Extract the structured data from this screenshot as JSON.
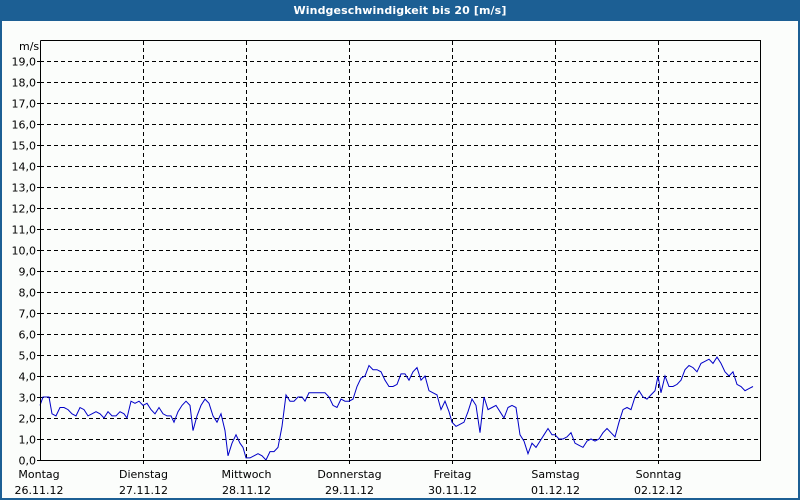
{
  "window": {
    "title": "Windgeschwindigkeit bis 20 [m/s]",
    "title_bar_color": "#1c5f94",
    "background_color": "#fbfdfb"
  },
  "chart_data": {
    "type": "line",
    "title": "Windgeschwindigkeit bis 20 [m/s]",
    "xlabel": "",
    "ylabel": "m/s",
    "ylim": [
      0,
      20
    ],
    "grid": true,
    "line_color": "#0000c8",
    "y_ticks": [
      "0,0",
      "1,0",
      "2,0",
      "3,0",
      "4,0",
      "5,0",
      "6,0",
      "7,0",
      "8,0",
      "9,0",
      "10,0",
      "11,0",
      "12,0",
      "13,0",
      "14,0",
      "15,0",
      "16,0",
      "17,0",
      "18,0",
      "19,0"
    ],
    "x_ticks": [
      {
        "day": "Montag",
        "date": "26.11.12"
      },
      {
        "day": "Dienstag",
        "date": "27.11.12"
      },
      {
        "day": "Mittwoch",
        "date": "28.11.12"
      },
      {
        "day": "Donnerstag",
        "date": "29.11.12"
      },
      {
        "day": "Freitag",
        "date": "30.11.12"
      },
      {
        "day": "Samstag",
        "date": "01.12.12"
      },
      {
        "day": "Sonntag",
        "date": "02.12.12"
      }
    ],
    "series": [
      {
        "name": "Windgeschwindigkeit",
        "unit": "m/s",
        "points": [
          [
            40,
            2.6
          ],
          [
            43,
            3.0
          ],
          [
            46,
            3.0
          ],
          [
            49,
            3.0
          ],
          [
            52,
            2.2
          ],
          [
            56,
            2.1
          ],
          [
            60,
            2.5
          ],
          [
            64,
            2.5
          ],
          [
            68,
            2.4
          ],
          [
            72,
            2.2
          ],
          [
            76,
            2.1
          ],
          [
            80,
            2.5
          ],
          [
            84,
            2.4
          ],
          [
            88,
            2.1
          ],
          [
            92,
            2.2
          ],
          [
            96,
            2.3
          ],
          [
            100,
            2.2
          ],
          [
            104,
            2.0
          ],
          [
            108,
            2.3
          ],
          [
            112,
            2.1
          ],
          [
            116,
            2.1
          ],
          [
            120,
            2.3
          ],
          [
            124,
            2.2
          ],
          [
            127,
            2.0
          ],
          [
            131,
            2.8
          ],
          [
            135,
            2.7
          ],
          [
            139,
            2.8
          ],
          [
            143,
            2.6
          ],
          [
            147,
            2.7
          ],
          [
            151,
            2.4
          ],
          [
            155,
            2.2
          ],
          [
            159,
            2.5
          ],
          [
            163,
            2.2
          ],
          [
            167,
            2.1
          ],
          [
            171,
            2.1
          ],
          [
            174,
            1.8
          ],
          [
            178,
            2.3
          ],
          [
            182,
            2.6
          ],
          [
            186,
            2.8
          ],
          [
            190,
            2.6
          ],
          [
            193,
            1.4
          ],
          [
            197,
            2.1
          ],
          [
            201,
            2.6
          ],
          [
            205,
            2.9
          ],
          [
            209,
            2.7
          ],
          [
            213,
            2.1
          ],
          [
            217,
            1.8
          ],
          [
            221,
            2.2
          ],
          [
            225,
            1.4
          ],
          [
            228,
            0.2
          ],
          [
            232,
            0.8
          ],
          [
            236,
            1.2
          ],
          [
            240,
            0.8
          ],
          [
            243,
            0.6
          ],
          [
            246,
            0.1
          ],
          [
            250,
            0.1
          ],
          [
            254,
            0.2
          ],
          [
            258,
            0.3
          ],
          [
            262,
            0.2
          ],
          [
            266,
            0.0
          ],
          [
            270,
            0.4
          ],
          [
            274,
            0.4
          ],
          [
            278,
            0.6
          ],
          [
            282,
            1.6
          ],
          [
            286,
            3.1
          ],
          [
            290,
            2.8
          ],
          [
            294,
            2.8
          ],
          [
            298,
            3.0
          ],
          [
            302,
            3.0
          ],
          [
            305,
            2.8
          ],
          [
            309,
            3.2
          ],
          [
            313,
            3.2
          ],
          [
            317,
            3.2
          ],
          [
            321,
            3.2
          ],
          [
            325,
            3.2
          ],
          [
            329,
            3.0
          ],
          [
            333,
            2.6
          ],
          [
            337,
            2.5
          ],
          [
            341,
            2.9
          ],
          [
            345,
            2.8
          ],
          [
            349,
            2.8
          ],
          [
            353,
            2.9
          ],
          [
            357,
            3.5
          ],
          [
            361,
            3.9
          ],
          [
            365,
            4.0
          ],
          [
            369,
            4.5
          ],
          [
            373,
            4.3
          ],
          [
            377,
            4.3
          ],
          [
            381,
            4.2
          ],
          [
            385,
            3.8
          ],
          [
            389,
            3.5
          ],
          [
            393,
            3.5
          ],
          [
            397,
            3.6
          ],
          [
            401,
            4.1
          ],
          [
            405,
            4.1
          ],
          [
            409,
            3.8
          ],
          [
            413,
            4.2
          ],
          [
            417,
            4.4
          ],
          [
            421,
            3.8
          ],
          [
            425,
            4.0
          ],
          [
            429,
            3.3
          ],
          [
            433,
            3.2
          ],
          [
            437,
            3.1
          ],
          [
            441,
            2.4
          ],
          [
            445,
            2.8
          ],
          [
            449,
            2.3
          ],
          [
            452,
            1.8
          ],
          [
            456,
            1.6
          ],
          [
            460,
            1.7
          ],
          [
            464,
            1.8
          ],
          [
            468,
            2.3
          ],
          [
            472,
            2.9
          ],
          [
            476,
            2.6
          ],
          [
            480,
            1.3
          ],
          [
            484,
            3.0
          ],
          [
            488,
            2.4
          ],
          [
            492,
            2.5
          ],
          [
            496,
            2.6
          ],
          [
            500,
            2.3
          ],
          [
            504,
            2.0
          ],
          [
            508,
            2.5
          ],
          [
            512,
            2.6
          ],
          [
            516,
            2.5
          ],
          [
            520,
            1.2
          ],
          [
            524,
            0.9
          ],
          [
            528,
            0.3
          ],
          [
            532,
            0.8
          ],
          [
            536,
            0.6
          ],
          [
            540,
            0.9
          ],
          [
            544,
            1.2
          ],
          [
            548,
            1.5
          ],
          [
            552,
            1.2
          ],
          [
            555,
            1.2
          ],
          [
            559,
            1.0
          ],
          [
            563,
            1.0
          ],
          [
            567,
            1.1
          ],
          [
            571,
            1.3
          ],
          [
            575,
            0.8
          ],
          [
            579,
            0.7
          ],
          [
            583,
            0.6
          ],
          [
            587,
            0.9
          ],
          [
            591,
            1.0
          ],
          [
            595,
            0.9
          ],
          [
            599,
            1.0
          ],
          [
            603,
            1.3
          ],
          [
            607,
            1.5
          ],
          [
            611,
            1.3
          ],
          [
            615,
            1.1
          ],
          [
            619,
            1.8
          ],
          [
            623,
            2.4
          ],
          [
            627,
            2.5
          ],
          [
            631,
            2.4
          ],
          [
            635,
            3.0
          ],
          [
            639,
            3.3
          ],
          [
            643,
            3.0
          ],
          [
            647,
            2.9
          ],
          [
            651,
            3.1
          ],
          [
            655,
            3.3
          ],
          [
            658,
            4.0
          ],
          [
            661,
            3.2
          ],
          [
            665,
            4.0
          ],
          [
            669,
            3.5
          ],
          [
            673,
            3.5
          ],
          [
            677,
            3.6
          ],
          [
            681,
            3.8
          ],
          [
            685,
            4.3
          ],
          [
            689,
            4.5
          ],
          [
            693,
            4.4
          ],
          [
            697,
            4.2
          ],
          [
            701,
            4.6
          ],
          [
            705,
            4.7
          ],
          [
            709,
            4.8
          ],
          [
            713,
            4.6
          ],
          [
            717,
            4.9
          ],
          [
            721,
            4.6
          ],
          [
            725,
            4.2
          ],
          [
            729,
            4.0
          ],
          [
            733,
            4.2
          ],
          [
            737,
            3.6
          ],
          [
            741,
            3.5
          ],
          [
            745,
            3.3
          ],
          [
            749,
            3.4
          ],
          [
            753,
            3.5
          ]
        ]
      }
    ]
  }
}
